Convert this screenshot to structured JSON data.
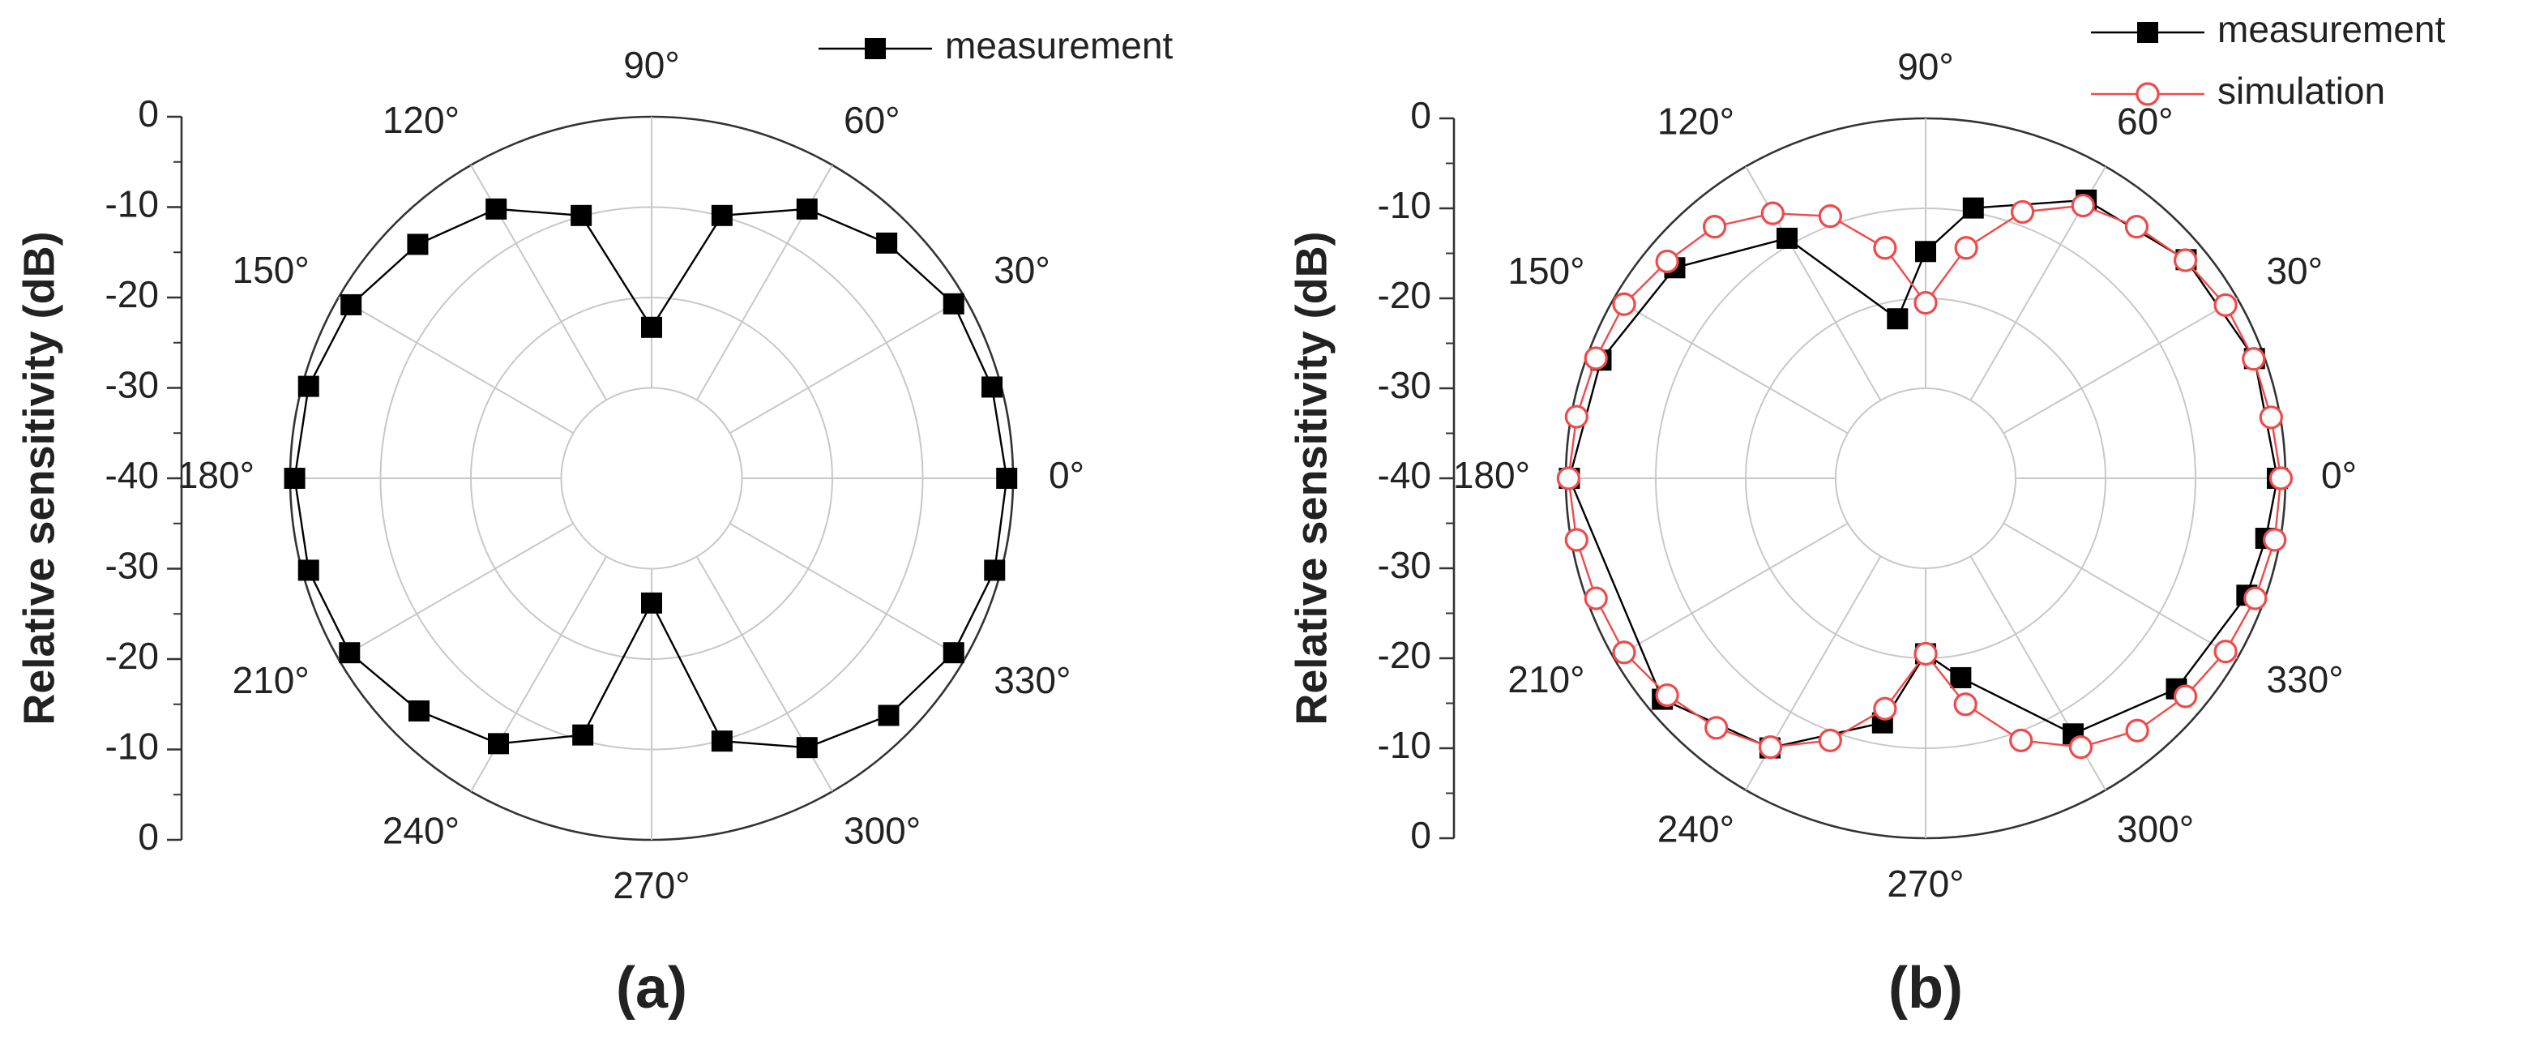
{
  "chart_data": [
    {
      "type": "polar",
      "label": "(a)",
      "ylabel": "Relative sensitivity (dB)",
      "rlim": [
        -40,
        0
      ],
      "rticks": [
        0,
        -10,
        -20,
        -30,
        -40
      ],
      "thetaticks": [
        {
          "value": 0,
          "label": "0°"
        },
        {
          "value": 30,
          "label": "30°"
        },
        {
          "value": 60,
          "label": "60°"
        },
        {
          "value": 90,
          "label": "90°"
        },
        {
          "value": 120,
          "label": "120°"
        },
        {
          "value": 150,
          "label": "150°"
        },
        {
          "value": 180,
          "label": "180°"
        },
        {
          "value": 210,
          "label": "210°"
        },
        {
          "value": 240,
          "label": "240°"
        },
        {
          "value": 270,
          "label": "270°"
        },
        {
          "value": 300,
          "label": "300°"
        },
        {
          "value": 330,
          "label": "330°"
        }
      ],
      "legend": "upper center",
      "series": [
        {
          "name": "measurement",
          "color": "#000000",
          "marker": "square",
          "x": [
            0,
            15,
            30,
            45,
            60,
            75,
            90,
            105,
            120,
            135,
            150,
            165,
            180,
            195,
            210,
            225,
            240,
            255,
            270,
            285,
            300,
            315,
            330,
            345
          ],
          "values": [
            -0.7,
            -1,
            -1.4,
            -3.2,
            -5.6,
            -9.9,
            -23.3,
            -9.9,
            -5.6,
            -3.4,
            -1.6,
            -0.7,
            -0.5,
            -0.7,
            -1.4,
            -3.6,
            -6.1,
            -10.6,
            -26.2,
            -9.9,
            -5.6,
            -2.9,
            -1.4,
            -0.7
          ]
        }
      ]
    },
    {
      "type": "polar",
      "label": "(b)",
      "ylabel": "Relative sensitivity (dB)",
      "rlim": [
        -40,
        0
      ],
      "rticks": [
        0,
        -10,
        -20,
        -30,
        -40
      ],
      "thetaticks": [
        {
          "value": 0,
          "label": "0°"
        },
        {
          "value": 30,
          "label": "30°"
        },
        {
          "value": 60,
          "label": "60°"
        },
        {
          "value": 90,
          "label": "90°"
        },
        {
          "value": 120,
          "label": "120°"
        },
        {
          "value": 150,
          "label": "150°"
        },
        {
          "value": 180,
          "label": "180°"
        },
        {
          "value": 210,
          "label": "210°"
        },
        {
          "value": 240,
          "label": "240°"
        },
        {
          "value": 270,
          "label": "270°"
        },
        {
          "value": 300,
          "label": "300°"
        },
        {
          "value": 330,
          "label": "330°"
        }
      ],
      "legend": "upper right",
      "series": [
        {
          "name": "measurement",
          "color": "#000000",
          "marker": "square",
          "x": [
            0,
            20,
            40,
            60,
            80,
            90,
            100,
            120,
            140,
            160,
            180,
            220,
            240,
            260,
            270,
            280,
            300,
            320,
            340,
            350
          ],
          "values": [
            -0.9,
            -1.1,
            -2.2,
            -4.3,
            -9.5,
            -14.8,
            -22,
            -9.2,
            -3.6,
            -1.6,
            -0.4,
            -1.8,
            -5.4,
            -12.4,
            -20.5,
            -17.5,
            -7.2,
            -3.6,
            -2,
            -1.6
          ]
        },
        {
          "name": "simulation",
          "color": "#f04a4a",
          "marker": "circle",
          "x": [
            0,
            10,
            20,
            30,
            40,
            50,
            60,
            70,
            80,
            90,
            100,
            110,
            120,
            130,
            140,
            150,
            160,
            170,
            180,
            190,
            200,
            210,
            220,
            230,
            240,
            250,
            260,
            270,
            280,
            290,
            300,
            310,
            320,
            330,
            340,
            350
          ],
          "values": [
            -0.5,
            -1,
            -1.2,
            -1.5,
            -2.3,
            -3.5,
            -5,
            -8.5,
            -14,
            -20.5,
            -14,
            -9,
            -6,
            -3.5,
            -2.5,
            -1.3,
            -1,
            -0.6,
            -0.3,
            -0.6,
            -1,
            -1.3,
            -2.5,
            -3.8,
            -5.5,
            -9,
            -14,
            -20.5,
            -14.5,
            -9,
            -5.5,
            -3.4,
            -2.3,
            -1.5,
            -1,
            -0.6
          ]
        }
      ]
    }
  ]
}
